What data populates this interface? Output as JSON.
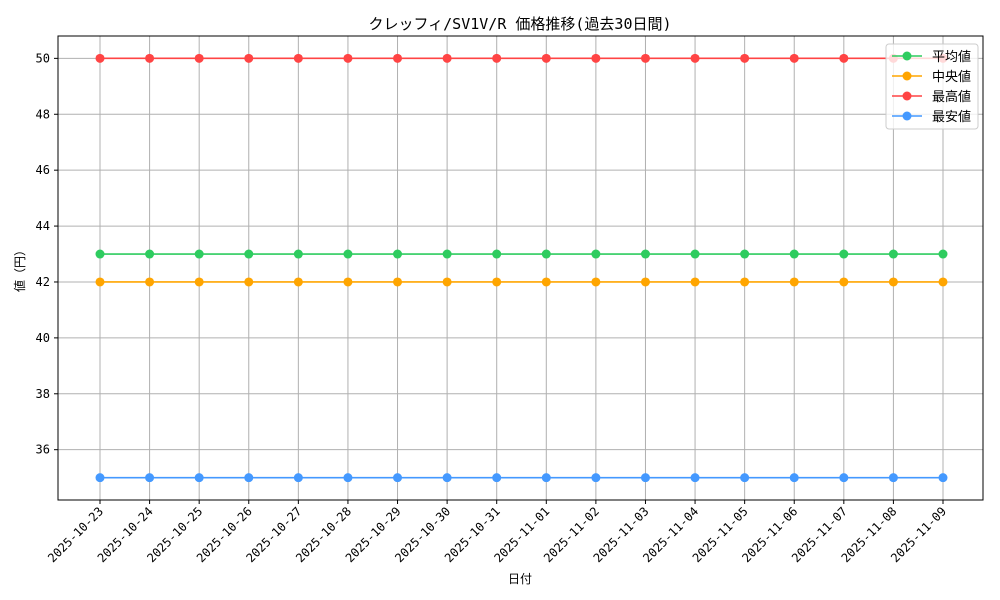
{
  "chart_data": {
    "type": "line",
    "title": "クレッフィ/SV1V/R 価格推移(過去30日間)",
    "xlabel": "日付",
    "ylabel": "値（円）",
    "x": [
      "2025-10-23",
      "2025-10-24",
      "2025-10-25",
      "2025-10-26",
      "2025-10-27",
      "2025-10-28",
      "2025-10-29",
      "2025-10-30",
      "2025-10-31",
      "2025-11-01",
      "2025-11-02",
      "2025-11-03",
      "2025-11-04",
      "2025-11-05",
      "2025-11-06",
      "2025-11-07",
      "2025-11-08",
      "2025-11-09"
    ],
    "yticks": [
      36,
      38,
      40,
      42,
      44,
      46,
      48,
      50
    ],
    "ylim": [
      34.2,
      50.8
    ],
    "grid": true,
    "legend_position": "top-right",
    "series": [
      {
        "name": "平均値",
        "color": "#2ecc5f",
        "values": [
          43,
          43,
          43,
          43,
          43,
          43,
          43,
          43,
          43,
          43,
          43,
          43,
          43,
          43,
          43,
          43,
          43,
          43
        ]
      },
      {
        "name": "中央値",
        "color": "#ffa500",
        "values": [
          42,
          42,
          42,
          42,
          42,
          42,
          42,
          42,
          42,
          42,
          42,
          42,
          42,
          42,
          42,
          42,
          42,
          42
        ]
      },
      {
        "name": "最高値",
        "color": "#ff4444",
        "values": [
          50,
          50,
          50,
          50,
          50,
          50,
          50,
          50,
          50,
          50,
          50,
          50,
          50,
          50,
          50,
          50,
          50,
          50
        ]
      },
      {
        "name": "最安値",
        "color": "#4499ff",
        "values": [
          35,
          35,
          35,
          35,
          35,
          35,
          35,
          35,
          35,
          35,
          35,
          35,
          35,
          35,
          35,
          35,
          35,
          35
        ]
      }
    ]
  }
}
